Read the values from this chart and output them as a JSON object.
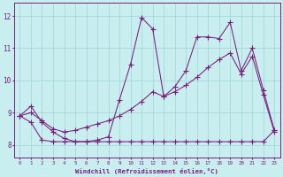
{
  "xlabel": "Windchill (Refroidissement éolien,°C)",
  "bg_color": "#c8eef0",
  "line_color": "#7b1e7a",
  "grid_color": "#a0d4d8",
  "xlim": [
    -0.5,
    23.5
  ],
  "ylim": [
    7.6,
    12.4
  ],
  "yticks": [
    8,
    9,
    10,
    11,
    12
  ],
  "xticks": [
    0,
    1,
    2,
    3,
    4,
    5,
    6,
    7,
    8,
    9,
    10,
    11,
    12,
    13,
    14,
    15,
    16,
    17,
    18,
    19,
    20,
    21,
    22,
    23
  ],
  "line1_x": [
    0,
    1,
    2,
    3,
    4,
    5,
    6,
    7,
    8,
    9,
    10,
    11,
    12,
    13,
    14,
    15,
    16,
    17,
    18,
    19,
    20,
    21,
    22,
    23
  ],
  "line1_y": [
    8.9,
    9.2,
    8.7,
    8.4,
    8.2,
    8.1,
    8.1,
    8.15,
    8.25,
    9.4,
    10.5,
    11.95,
    11.6,
    9.5,
    9.8,
    10.3,
    11.35,
    11.35,
    11.3,
    11.8,
    10.3,
    11.0,
    9.7,
    8.45
  ],
  "line2_x": [
    0,
    1,
    2,
    3,
    4,
    5,
    6,
    7,
    8,
    9,
    10,
    11,
    12,
    13,
    14,
    15,
    16,
    17,
    18,
    19,
    20,
    21,
    22,
    23
  ],
  "line2_y": [
    8.9,
    9.0,
    8.75,
    8.5,
    8.4,
    8.45,
    8.55,
    8.65,
    8.75,
    8.9,
    9.1,
    9.35,
    9.65,
    9.5,
    9.65,
    9.85,
    10.1,
    10.4,
    10.65,
    10.85,
    10.2,
    10.75,
    9.55,
    8.4
  ],
  "line3_x": [
    0,
    1,
    2,
    3,
    4,
    5,
    6,
    7,
    8,
    9,
    10,
    11,
    12,
    13,
    14,
    15,
    16,
    17,
    18,
    19,
    20,
    21,
    22,
    23
  ],
  "line3_y": [
    8.9,
    8.7,
    8.15,
    8.1,
    8.1,
    8.1,
    8.1,
    8.1,
    8.1,
    8.1,
    8.1,
    8.1,
    8.1,
    8.1,
    8.1,
    8.1,
    8.1,
    8.1,
    8.1,
    8.1,
    8.1,
    8.1,
    8.1,
    8.45
  ]
}
